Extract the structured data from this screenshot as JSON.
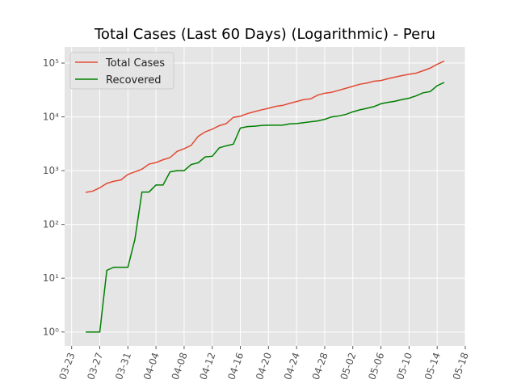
{
  "chart_data": {
    "type": "line",
    "title": "Total Cases (Last 60 Days) (Logarithmic) - Peru",
    "x": [
      "03-25",
      "03-26",
      "03-27",
      "03-28",
      "03-29",
      "03-30",
      "03-31",
      "04-01",
      "04-02",
      "04-03",
      "04-04",
      "04-05",
      "04-06",
      "04-07",
      "04-08",
      "04-09",
      "04-10",
      "04-11",
      "04-12",
      "04-13",
      "04-14",
      "04-15",
      "04-16",
      "04-17",
      "04-18",
      "04-19",
      "04-20",
      "04-21",
      "04-22",
      "04-23",
      "04-24",
      "04-25",
      "04-26",
      "04-27",
      "04-28",
      "04-29",
      "04-30",
      "05-01",
      "05-02",
      "05-03",
      "05-04",
      "05-05",
      "05-06",
      "05-07",
      "05-08",
      "05-09",
      "05-10",
      "05-11",
      "05-12",
      "05-13",
      "05-14",
      "05-15"
    ],
    "series": [
      {
        "name": "Total Cases",
        "color": "#e24a33",
        "values": [
          395,
          416,
          480,
          580,
          635,
          671,
          852,
          950,
          1065,
          1323,
          1414,
          1595,
          1746,
          2281,
          2561,
          2954,
          4342,
          5256,
          5897,
          6848,
          7519,
          9784,
          10303,
          11475,
          12491,
          13489,
          14420,
          15628,
          16325,
          17837,
          19250,
          20914,
          21648,
          25331,
          27517,
          28699,
          31190,
          33931,
          36976,
          40459,
          42534,
          45928,
          47372,
          51189,
          54817,
          58526,
          61847,
          65015,
          72059,
          80604,
          94933,
          108769
        ]
      },
      {
        "name": "Recovered",
        "color": "#008000",
        "values": [
          1,
          1,
          1,
          14,
          16,
          16,
          16,
          53,
          400,
          400,
          540,
          540,
          950,
          1000,
          1000,
          1300,
          1400,
          1800,
          1850,
          2650,
          2900,
          3100,
          6200,
          6600,
          6700,
          6900,
          7000,
          7000,
          7000,
          7400,
          7500,
          7800,
          8100,
          8400,
          9000,
          10000,
          10400,
          11100,
          12400,
          13500,
          14400,
          15500,
          17500,
          18600,
          19500,
          21000,
          22200,
          24600,
          28000,
          29500,
          38000,
          43500
        ]
      }
    ],
    "xlim": [
      "03-22",
      "05-18"
    ],
    "xticks": [
      "03-23",
      "03-27",
      "03-31",
      "04-04",
      "04-08",
      "04-12",
      "04-16",
      "04-20",
      "04-24",
      "04-28",
      "05-02",
      "05-06",
      "05-10",
      "05-14",
      "05-18"
    ],
    "ylim": [
      0.55,
      200000
    ],
    "yticks": [
      {
        "value": 1,
        "label": "10⁰"
      },
      {
        "value": 10,
        "label": "10¹"
      },
      {
        "value": 100,
        "label": "10²"
      },
      {
        "value": 1000,
        "label": "10³"
      },
      {
        "value": 10000,
        "label": "10⁴"
      },
      {
        "value": 100000,
        "label": "10⁵"
      }
    ],
    "log_y": true,
    "grid": true,
    "legend": "upper left"
  }
}
